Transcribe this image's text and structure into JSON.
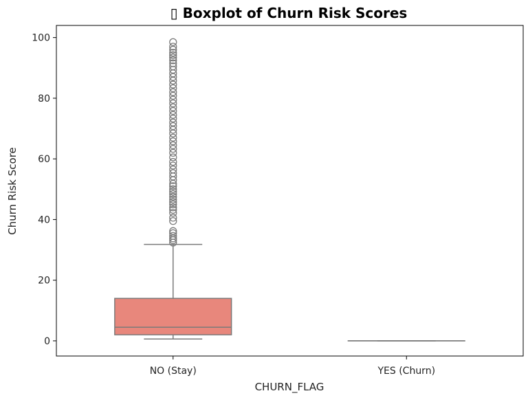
{
  "chart_data": {
    "type": "box",
    "title": "▯ Boxplot of Churn Risk Scores",
    "xlabel": "CHURN_FLAG",
    "ylabel": "Churn Risk Score",
    "ylim": [
      -5,
      104
    ],
    "yticks": [
      0,
      20,
      40,
      60,
      80,
      100
    ],
    "grid": false,
    "categories": [
      "NO (Stay)",
      "YES (Churn)"
    ],
    "boxes": [
      {
        "category": "NO (Stay)",
        "whisker_low": 0.6,
        "q1": 2,
        "median": 4.5,
        "q3": 14,
        "whisker_high": 31.8,
        "outliers": [
          32.4,
          33.2,
          33.8,
          34.6,
          35.5,
          36.2,
          39.5,
          40.6,
          42.2,
          43.2,
          44,
          45,
          45.8,
          46.6,
          47.5,
          48.4,
          49.2,
          50,
          51,
          51.8,
          53,
          54.2,
          55.3,
          56.5,
          57.8,
          59,
          60.5,
          62,
          63.3,
          64.5,
          65.8,
          67,
          68.4,
          69.6,
          70.8,
          72,
          73.3,
          74.5,
          75.8,
          77,
          78.3,
          79.5,
          80.8,
          82,
          83.3,
          84.5,
          85.8,
          87,
          88.2,
          89.4,
          90.5,
          91.5,
          92.5,
          93.4,
          94.2,
          95,
          96,
          97,
          98.5
        ],
        "color": "#e8877c"
      },
      {
        "category": "YES (Churn)",
        "whisker_low": 0,
        "q1": 0,
        "median": 0,
        "q3": 0,
        "whisker_high": 0,
        "outliers": [],
        "color": "#e8877c"
      }
    ]
  }
}
